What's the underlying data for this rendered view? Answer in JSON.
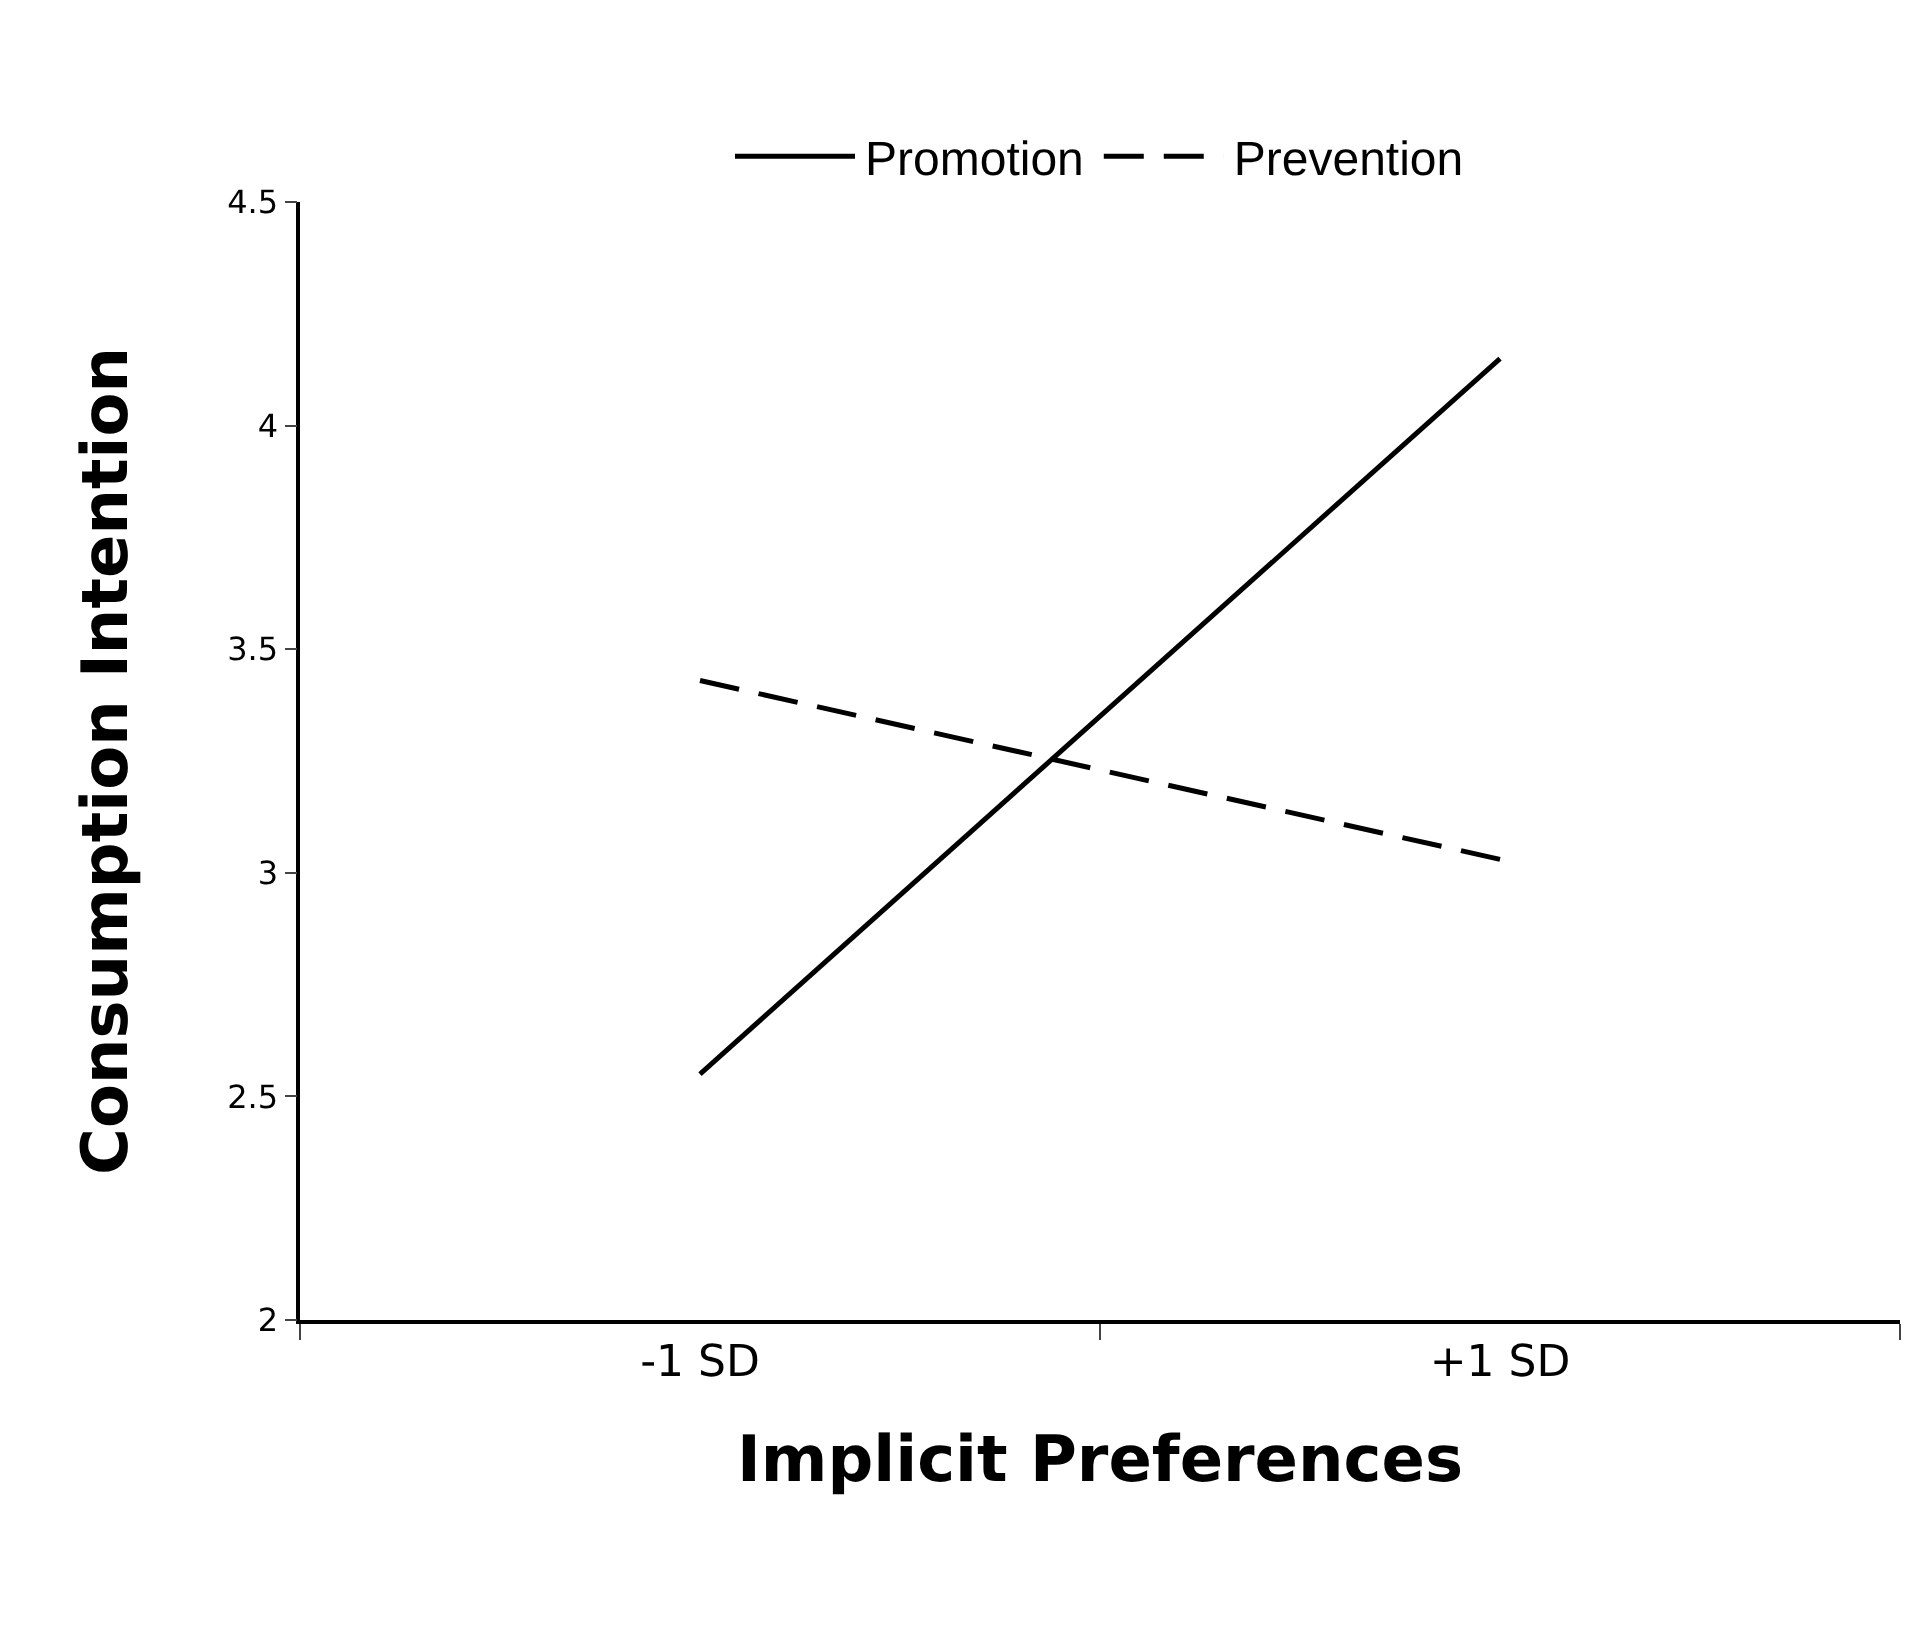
{
  "chart_data": {
    "type": "line",
    "xlabel": "Implicit Preferences",
    "ylabel": "Consumption Intention",
    "categories": [
      "-1 SD",
      "+1 SD"
    ],
    "series": [
      {
        "name": "Promotion",
        "color": "#000000",
        "line_style": "solid",
        "values": [
          2.55,
          4.15
        ]
      },
      {
        "name": "Prevention",
        "color": "#000000",
        "line_style": "dashed",
        "values": [
          3.43,
          3.03
        ]
      }
    ],
    "ylim": [
      2,
      4.5
    ],
    "yticks": [
      2,
      2.5,
      3,
      3.5,
      4,
      4.5
    ],
    "legend": "top",
    "marker": "none"
  }
}
